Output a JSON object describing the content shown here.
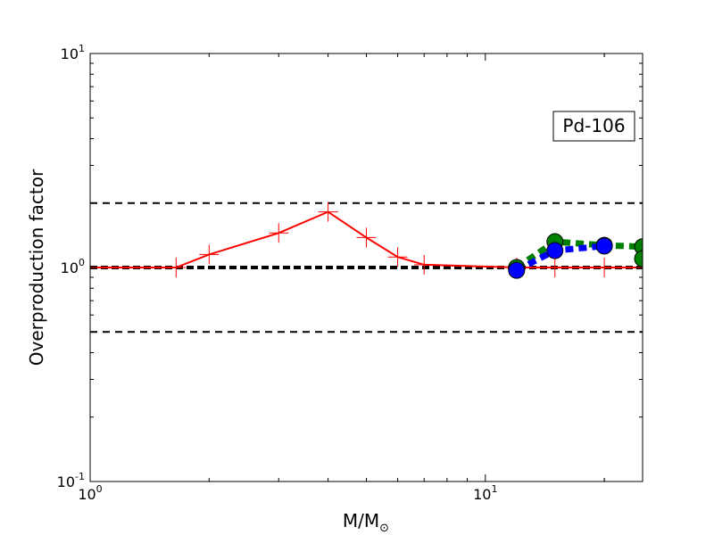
{
  "chart_data": {
    "type": "line",
    "title": "",
    "xlabel_main": "M/M",
    "xlabel_sub": "⊙",
    "ylabel": "Overproduction factor",
    "xscale": "log",
    "yscale": "log",
    "xlim": [
      1,
      25
    ],
    "ylim": [
      0.1,
      10
    ],
    "x_ticks": [
      {
        "value": 1,
        "base": "10",
        "exp": "0"
      },
      {
        "value": 10,
        "base": "10",
        "exp": "1"
      }
    ],
    "y_ticks": [
      {
        "value": 0.1,
        "base": "10",
        "exp": "-1"
      },
      {
        "value": 1,
        "base": "10",
        "exp": "0"
      },
      {
        "value": 10,
        "base": "10",
        "exp": "1"
      }
    ],
    "annotation": "Pd-106",
    "annotation_position": "top-right",
    "reference_lines": [
      {
        "y": 2.0,
        "style": "thin-dashed"
      },
      {
        "y": 1.0,
        "style": "thick-dashed"
      },
      {
        "y": 0.5,
        "style": "thin-dashed"
      }
    ],
    "series": [
      {
        "color": "#ff0000",
        "style": "solid",
        "marker": "plus",
        "x": [
          1.0,
          1.65,
          2.0,
          3.0,
          4.0,
          5.0,
          6.0,
          7.0,
          12.0,
          15.0,
          20.0,
          25.0
        ],
        "y": [
          1.0,
          1.0,
          1.15,
          1.45,
          1.82,
          1.38,
          1.12,
          1.03,
          1.0,
          1.0,
          1.0,
          1.0
        ]
      },
      {
        "color": "#008000",
        "style": "dotted",
        "marker": "circle",
        "x": [
          12.0,
          15.0,
          20.0,
          25.0
        ],
        "y": [
          1.0,
          1.32,
          1.27,
          1.25
        ]
      },
      {
        "color": "#0000ff",
        "style": "dotted",
        "marker": "circle",
        "x": [
          12.0,
          15.0,
          20.0
        ],
        "y": [
          0.97,
          1.2,
          1.26
        ]
      }
    ],
    "green_tail": {
      "x": 25.0,
      "y": 1.1
    }
  }
}
